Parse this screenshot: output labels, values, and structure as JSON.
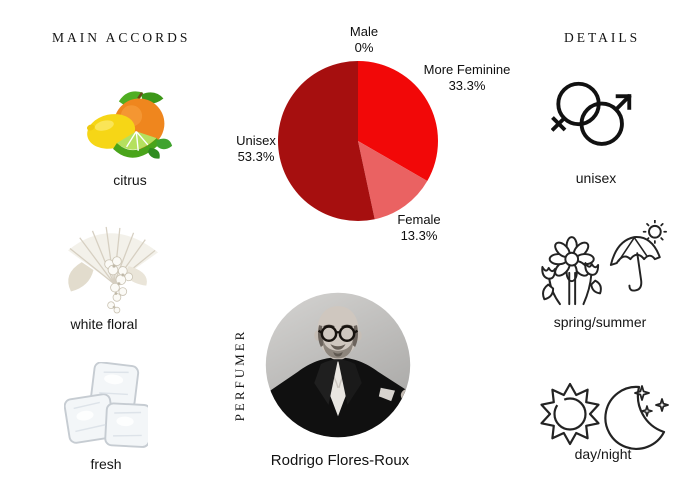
{
  "accords": {
    "header": "MAIN ACCORDS",
    "items": [
      {
        "label": "citrus",
        "icon": "citrus-fruits-icon"
      },
      {
        "label": "white floral",
        "icon": "white-floral-icon"
      },
      {
        "label": "fresh",
        "icon": "ice-cubes-icon"
      }
    ]
  },
  "chart_data": {
    "type": "pie",
    "title": "gender audience split",
    "legend": "none",
    "start_angle_deg": 0,
    "direction": "clockwise",
    "slices": [
      {
        "label": "Male",
        "pct_label": "0%",
        "value": 0
      },
      {
        "label": "More Feminine",
        "pct_label": "33.3%",
        "value": 33.3,
        "color": "#f20808"
      },
      {
        "label": "Female",
        "pct_label": "13.3%",
        "value": 13.3,
        "color": "#ea6262"
      },
      {
        "label": "Unisex",
        "pct_label": "53.3%",
        "value": 53.3,
        "color": "#a60f0f"
      }
    ]
  },
  "perfumer": {
    "section_label": "PERFUMER",
    "name": "Rodrigo Flores-Roux"
  },
  "details": {
    "header": "DETAILS",
    "items": [
      {
        "label": "unisex",
        "icon": "gender-unisex-icon"
      },
      {
        "label": "spring/summer",
        "icon": "flowers-umbrella-sun-icon"
      },
      {
        "label": "day/night",
        "icon": "sun-moon-icon"
      }
    ]
  }
}
